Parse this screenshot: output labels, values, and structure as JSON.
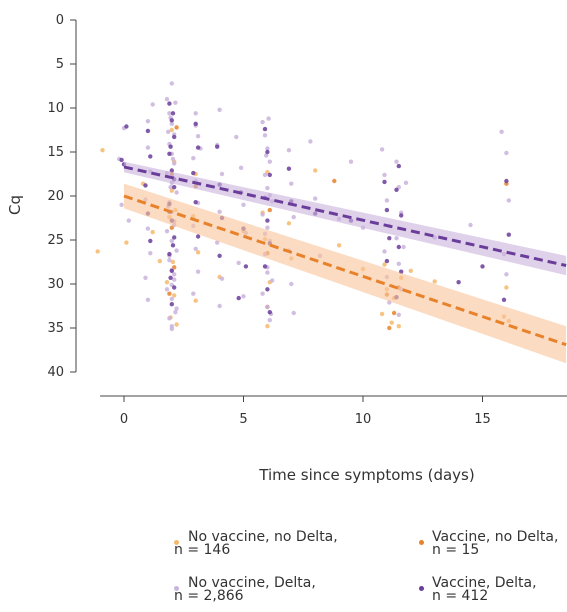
{
  "chart_data": {
    "type": "scatter",
    "title": "",
    "xlabel": "Time since symptoms (days)",
    "ylabel": "Cq",
    "xlim": [
      -1,
      18.5
    ],
    "ylim": [
      0,
      40
    ],
    "y_inverted": true,
    "x_ticks": [
      0,
      5,
      10,
      15
    ],
    "x_tick_labels": [
      "0",
      "5",
      "10",
      "15"
    ],
    "y_ticks": [
      0,
      5,
      10,
      15,
      20,
      25,
      30,
      35,
      40
    ],
    "y_tick_labels": [
      "0",
      "5",
      "10",
      "15",
      "20",
      "25",
      "30",
      "35",
      "40"
    ],
    "grid": false,
    "legend_position": "bottom",
    "legend": [
      {
        "label_line1": "No vaccine, no Delta,",
        "label_line2": "n = 146",
        "color": "#f5b86b"
      },
      {
        "label_line1": "Vaccine, no Delta,",
        "label_line2": "n = 15",
        "color": "#e8822a"
      },
      {
        "label_line1": "No vaccine, Delta,",
        "label_line2": "n = 2,866",
        "color": "#c9b3dc"
      },
      {
        "label_line1": "Vaccine, Delta,",
        "label_line2": "n = 412",
        "color": "#6a3d9a"
      }
    ],
    "series": [
      {
        "color": "#f5b86b",
        "points": [
          [
            -1.1,
            26.3
          ],
          [
            -0.9,
            14.8
          ],
          [
            0.1,
            25.3
          ],
          [
            0.8,
            18.6
          ],
          [
            1.2,
            24.1
          ],
          [
            1.5,
            27.4
          ],
          [
            2.0,
            12.5
          ],
          [
            2.1,
            16.1
          ],
          [
            1.9,
            22.4
          ],
          [
            2.05,
            27.5
          ],
          [
            2.1,
            31.3
          ],
          [
            1.95,
            33.8
          ],
          [
            2.2,
            34.6
          ],
          [
            2.0,
            19.4
          ],
          [
            1.8,
            29.8
          ],
          [
            2.15,
            21.6
          ],
          [
            3.0,
            17.5
          ],
          [
            3.1,
            26.4
          ],
          [
            2.9,
            22.3
          ],
          [
            3.0,
            31.9
          ],
          [
            4.0,
            29.2
          ],
          [
            4.8,
            19.6
          ],
          [
            5.0,
            24.0
          ],
          [
            6.0,
            34.8
          ],
          [
            5.9,
            24.9
          ],
          [
            6.1,
            29.8
          ],
          [
            6.0,
            17.3
          ],
          [
            5.8,
            21.9
          ],
          [
            6.9,
            23.1
          ],
          [
            7.0,
            27.1
          ],
          [
            8.0,
            17.1
          ],
          [
            9.0,
            25.6
          ],
          [
            10.0,
            28.3
          ],
          [
            11.0,
            30.6
          ],
          [
            10.8,
            33.4
          ],
          [
            11.2,
            34.4
          ],
          [
            11.5,
            34.8
          ],
          [
            11.3,
            31.6
          ],
          [
            11.6,
            29.3
          ],
          [
            10.9,
            27.8
          ],
          [
            12.0,
            28.5
          ],
          [
            13.0,
            29.7
          ],
          [
            15.9,
            33.7
          ],
          [
            16.1,
            34.2
          ],
          [
            16.0,
            30.4
          ]
        ]
      },
      {
        "color": "#e8822a",
        "points": [
          [
            2.0,
            23.6
          ],
          [
            2.1,
            28.1
          ],
          [
            2.0,
            17.5
          ],
          [
            6.0,
            26.5
          ],
          [
            8.8,
            18.3
          ],
          [
            11.0,
            31.2
          ],
          [
            11.3,
            33.3
          ],
          [
            11.5,
            30.4
          ],
          [
            16.0,
            18.6
          ],
          [
            1.9,
            31.1
          ],
          [
            3.0,
            18.9
          ],
          [
            6.1,
            21.6
          ],
          [
            11.1,
            35.0
          ],
          [
            6.0,
            32.6
          ],
          [
            2.2,
            12.2
          ]
        ]
      },
      {
        "color": "#c9b3dc",
        "points": [
          [
            -0.2,
            15.8
          ],
          [
            0.0,
            12.3
          ],
          [
            0.2,
            22.8
          ],
          [
            -0.1,
            21.0
          ],
          [
            1.0,
            11.5
          ],
          [
            1.0,
            14.5
          ],
          [
            1.1,
            17.2
          ],
          [
            0.9,
            20.4
          ],
          [
            1.0,
            23.7
          ],
          [
            1.1,
            26.5
          ],
          [
            0.9,
            29.3
          ],
          [
            1.0,
            31.8
          ],
          [
            1.2,
            9.6
          ],
          [
            1.8,
            9.0
          ],
          [
            1.9,
            10.6
          ],
          [
            2.0,
            11.8
          ],
          [
            2.1,
            13.0
          ],
          [
            1.9,
            14.1
          ],
          [
            2.0,
            15.2
          ],
          [
            2.1,
            16.3
          ],
          [
            1.8,
            17.4
          ],
          [
            2.0,
            18.5
          ],
          [
            2.2,
            19.6
          ],
          [
            1.9,
            20.7
          ],
          [
            2.0,
            21.8
          ],
          [
            2.1,
            22.9
          ],
          [
            1.8,
            24.0
          ],
          [
            2.0,
            25.1
          ],
          [
            2.2,
            26.2
          ],
          [
            1.9,
            27.3
          ],
          [
            2.0,
            28.4
          ],
          [
            2.1,
            29.5
          ],
          [
            1.8,
            30.6
          ],
          [
            2.0,
            31.7
          ],
          [
            2.2,
            32.8
          ],
          [
            1.9,
            33.9
          ],
          [
            2.0,
            34.8
          ],
          [
            2.0,
            7.2
          ],
          [
            2.15,
            9.4
          ],
          [
            1.85,
            12.7
          ],
          [
            2.05,
            15.8
          ],
          [
            1.95,
            19.0
          ],
          [
            2.1,
            23.3
          ],
          [
            1.9,
            26.8
          ],
          [
            2.0,
            30.1
          ],
          [
            2.15,
            33.2
          ],
          [
            1.85,
            21.2
          ],
          [
            2.05,
            17.9
          ],
          [
            1.95,
            11.1
          ],
          [
            2.1,
            28.9
          ],
          [
            3.0,
            10.6
          ],
          [
            3.1,
            13.2
          ],
          [
            2.9,
            15.7
          ],
          [
            3.0,
            18.3
          ],
          [
            3.1,
            20.8
          ],
          [
            2.9,
            23.4
          ],
          [
            3.0,
            26.0
          ],
          [
            3.1,
            28.6
          ],
          [
            2.9,
            31.1
          ],
          [
            3.0,
            12.0
          ],
          [
            3.2,
            14.6
          ],
          [
            4.0,
            10.2
          ],
          [
            3.9,
            14.2
          ],
          [
            4.1,
            17.5
          ],
          [
            4.0,
            21.8
          ],
          [
            3.9,
            25.3
          ],
          [
            4.1,
            29.4
          ],
          [
            4.0,
            32.5
          ],
          [
            4.7,
            13.3
          ],
          [
            4.9,
            16.8
          ],
          [
            5.0,
            21.0
          ],
          [
            5.1,
            24.2
          ],
          [
            4.8,
            27.6
          ],
          [
            5.0,
            31.4
          ],
          [
            5.8,
            11.6
          ],
          [
            5.9,
            13.1
          ],
          [
            6.0,
            14.6
          ],
          [
            6.1,
            16.1
          ],
          [
            5.9,
            17.6
          ],
          [
            6.0,
            19.1
          ],
          [
            6.2,
            20.6
          ],
          [
            5.8,
            22.1
          ],
          [
            6.0,
            23.6
          ],
          [
            6.1,
            25.1
          ],
          [
            5.9,
            26.6
          ],
          [
            6.0,
            28.1
          ],
          [
            6.2,
            29.6
          ],
          [
            5.8,
            31.1
          ],
          [
            6.0,
            32.6
          ],
          [
            6.1,
            34.1
          ],
          [
            6.05,
            11.2
          ],
          [
            5.95,
            15.4
          ],
          [
            6.1,
            19.9
          ],
          [
            5.9,
            24.3
          ],
          [
            6.0,
            28.7
          ],
          [
            6.15,
            33.4
          ],
          [
            6.9,
            14.8
          ],
          [
            7.0,
            18.6
          ],
          [
            7.1,
            22.4
          ],
          [
            6.9,
            26.2
          ],
          [
            7.0,
            30.0
          ],
          [
            7.1,
            33.3
          ],
          [
            7.8,
            13.8
          ],
          [
            8.0,
            20.3
          ],
          [
            8.2,
            26.8
          ],
          [
            9.0,
            22.6
          ],
          [
            9.5,
            16.1
          ],
          [
            10.0,
            23.6
          ],
          [
            10.8,
            14.7
          ],
          [
            10.9,
            17.6
          ],
          [
            11.0,
            20.5
          ],
          [
            11.1,
            23.4
          ],
          [
            10.9,
            26.3
          ],
          [
            11.0,
            29.2
          ],
          [
            11.1,
            32.1
          ],
          [
            11.4,
            16.1
          ],
          [
            11.5,
            19.0
          ],
          [
            11.6,
            21.9
          ],
          [
            11.4,
            24.8
          ],
          [
            11.5,
            27.7
          ],
          [
            11.6,
            30.6
          ],
          [
            11.5,
            33.5
          ],
          [
            11.8,
            18.5
          ],
          [
            11.7,
            25.8
          ],
          [
            13.0,
            24.7
          ],
          [
            14.5,
            23.3
          ],
          [
            15.8,
            12.7
          ],
          [
            16.0,
            15.1
          ],
          [
            16.1,
            20.5
          ],
          [
            15.9,
            26.6
          ],
          [
            16.0,
            28.9
          ],
          [
            2.0,
            35.1
          ]
        ]
      },
      {
        "color": "#6a3d9a",
        "points": [
          [
            -0.1,
            15.9
          ],
          [
            0.0,
            16.4
          ],
          [
            0.1,
            12.1
          ],
          [
            1.0,
            12.6
          ],
          [
            1.1,
            15.5
          ],
          [
            0.9,
            18.8
          ],
          [
            1.0,
            22.0
          ],
          [
            1.1,
            25.1
          ],
          [
            1.9,
            9.5
          ],
          [
            2.0,
            11.4
          ],
          [
            2.1,
            13.3
          ],
          [
            1.9,
            15.2
          ],
          [
            2.0,
            17.1
          ],
          [
            2.1,
            19.0
          ],
          [
            1.9,
            20.9
          ],
          [
            2.0,
            22.8
          ],
          [
            2.1,
            24.7
          ],
          [
            1.9,
            26.6
          ],
          [
            2.0,
            28.5
          ],
          [
            2.1,
            30.4
          ],
          [
            2.0,
            32.3
          ],
          [
            2.05,
            10.6
          ],
          [
            1.95,
            14.4
          ],
          [
            2.1,
            18.1
          ],
          [
            1.9,
            21.8
          ],
          [
            2.05,
            25.6
          ],
          [
            1.95,
            29.3
          ],
          [
            3.0,
            11.8
          ],
          [
            3.1,
            14.5
          ],
          [
            2.9,
            17.4
          ],
          [
            3.0,
            20.7
          ],
          [
            3.1,
            24.6
          ],
          [
            3.9,
            14.4
          ],
          [
            4.0,
            18.7
          ],
          [
            4.1,
            22.5
          ],
          [
            4.0,
            26.8
          ],
          [
            4.9,
            19.6
          ],
          [
            5.0,
            23.7
          ],
          [
            5.1,
            28.0
          ],
          [
            4.8,
            31.6
          ],
          [
            5.9,
            12.4
          ],
          [
            6.0,
            15.0
          ],
          [
            6.1,
            17.6
          ],
          [
            5.9,
            20.2
          ],
          [
            6.0,
            22.8
          ],
          [
            6.1,
            25.4
          ],
          [
            5.9,
            28.0
          ],
          [
            6.0,
            30.6
          ],
          [
            6.1,
            33.2
          ],
          [
            7.0,
            20.6
          ],
          [
            6.9,
            16.9
          ],
          [
            8.0,
            22.0
          ],
          [
            9.5,
            22.8
          ],
          [
            10.9,
            18.4
          ],
          [
            11.0,
            21.6
          ],
          [
            11.1,
            24.8
          ],
          [
            11.0,
            27.4
          ],
          [
            11.5,
            16.6
          ],
          [
            11.4,
            19.3
          ],
          [
            11.6,
            22.2
          ],
          [
            11.5,
            25.8
          ],
          [
            11.6,
            28.6
          ],
          [
            11.4,
            31.5
          ],
          [
            14.0,
            29.8
          ],
          [
            15.0,
            28.0
          ],
          [
            16.0,
            18.3
          ],
          [
            16.1,
            24.4
          ],
          [
            15.9,
            31.8
          ]
        ]
      }
    ],
    "regression": [
      {
        "color": "#e8822a",
        "band_color": "#f8c39a",
        "x": [
          0,
          18.5
        ],
        "y": [
          20.0,
          36.9
        ],
        "ci_start": [
          18.6,
          21.4
        ],
        "ci_end": [
          34.8,
          39.0
        ]
      },
      {
        "color": "#6a3d9a",
        "band_color": "#c9b3dc",
        "x": [
          0,
          18.5
        ],
        "y": [
          16.7,
          27.9
        ],
        "ci_start": [
          16.1,
          17.3
        ],
        "ci_end": [
          26.8,
          29.0
        ]
      }
    ]
  }
}
